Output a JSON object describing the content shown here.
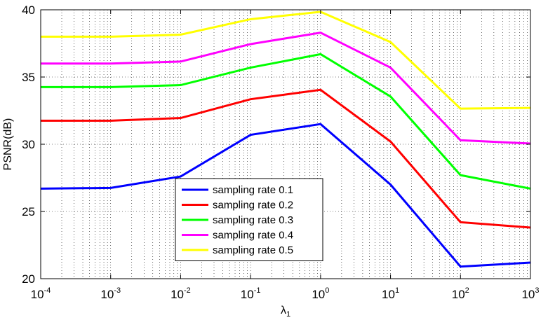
{
  "chart_data": {
    "type": "line",
    "xscale": "log",
    "x": [
      0.0001,
      0.001,
      0.01,
      0.1,
      1,
      10,
      100,
      1000
    ],
    "xlim": [
      0.0001,
      1000
    ],
    "ylim": [
      20,
      40
    ],
    "xticks": [
      {
        "base": "10",
        "exp": "-4"
      },
      {
        "base": "10",
        "exp": "-3"
      },
      {
        "base": "10",
        "exp": "-2"
      },
      {
        "base": "10",
        "exp": "-1"
      },
      {
        "base": "10",
        "exp": "0"
      },
      {
        "base": "10",
        "exp": "1"
      },
      {
        "base": "10",
        "exp": "2"
      },
      {
        "base": "10",
        "exp": "3"
      }
    ],
    "yticks": [
      "20",
      "25",
      "30",
      "35",
      "40"
    ],
    "xlabel": {
      "base": "λ",
      "sub": "1"
    },
    "ylabel": "PSNR(dB)",
    "grid": true,
    "legend_position": "bottom-center",
    "series": [
      {
        "name": "sampling rate 0.1",
        "color": "#0000ff",
        "values": [
          26.7,
          26.75,
          27.6,
          30.7,
          31.5,
          27.0,
          20.9,
          21.2
        ]
      },
      {
        "name": "sampling rate 0.2",
        "color": "#ff0000",
        "values": [
          31.75,
          31.75,
          31.95,
          33.35,
          34.05,
          30.2,
          24.2,
          23.8
        ]
      },
      {
        "name": "sampling rate 0.3",
        "color": "#00ff00",
        "values": [
          34.25,
          34.25,
          34.4,
          35.7,
          36.7,
          33.55,
          27.7,
          26.7
        ]
      },
      {
        "name": "sampling rate 0.4",
        "color": "#ff00ff",
        "values": [
          36.0,
          36.0,
          36.15,
          37.45,
          38.3,
          35.7,
          30.3,
          30.05
        ]
      },
      {
        "name": "sampling rate 0.5",
        "color": "#ffff00",
        "values": [
          38.0,
          38.0,
          38.15,
          39.3,
          39.85,
          37.6,
          32.65,
          32.7
        ]
      }
    ]
  }
}
